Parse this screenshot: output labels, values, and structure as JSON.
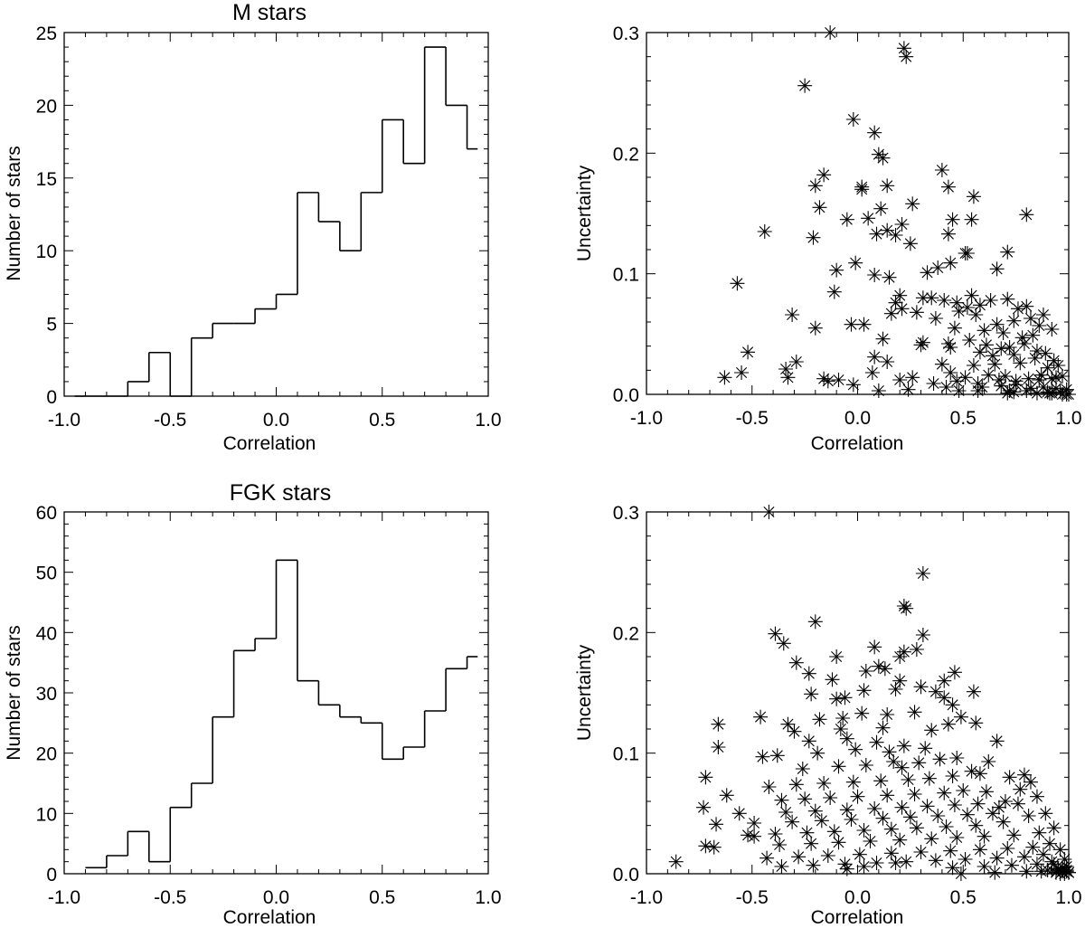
{
  "chart_data": [
    {
      "type": "bar",
      "subtype": "histogram-step",
      "title": "M stars",
      "xlabel": "Correlation",
      "ylabel": "Number of stars",
      "xlim": [
        -1.0,
        1.0
      ],
      "ylim": [
        0,
        25
      ],
      "xticks": [
        -1.0,
        -0.5,
        0.0,
        0.5,
        1.0
      ],
      "xtick_labels": [
        "-1.0",
        "-0.5",
        "0.0",
        "0.5",
        "1.0"
      ],
      "yticks": [
        0,
        5,
        10,
        15,
        20,
        25
      ],
      "ytick_labels": [
        "0",
        "5",
        "10",
        "15",
        "20",
        "25"
      ],
      "bin_edges": [
        -0.95,
        -0.9,
        -0.8,
        -0.7,
        -0.6,
        -0.5,
        -0.4,
        -0.3,
        -0.2,
        -0.1,
        0.0,
        0.1,
        0.2,
        0.3,
        0.4,
        0.5,
        0.6,
        0.7,
        0.8,
        0.9,
        0.95
      ],
      "values": [
        0,
        0,
        0,
        1,
        3,
        0,
        4,
        5,
        5,
        6,
        7,
        14,
        12,
        10,
        14,
        19,
        16,
        24,
        20,
        17
      ],
      "grid": false
    },
    {
      "type": "scatter",
      "title": "",
      "xlabel": "Correlation",
      "ylabel": "Uncertainty",
      "xlim": [
        -1.0,
        1.0
      ],
      "ylim": [
        0.0,
        0.3
      ],
      "xticks": [
        -1.0,
        -0.5,
        0.0,
        0.5,
        1.0
      ],
      "xtick_labels": [
        "-1.0",
        "-0.5",
        "0.0",
        "0.5",
        "1.0"
      ],
      "yticks": [
        0.0,
        0.1,
        0.2,
        0.3
      ],
      "ytick_labels": [
        "0.0",
        "0.1",
        "0.2",
        "0.3"
      ],
      "marker": "asterisk",
      "grid": false,
      "x": [
        -0.13,
        0.22,
        0.23,
        -0.25,
        -0.02,
        0.08,
        0.1,
        0.12,
        -0.16,
        -0.2,
        0.02,
        0.14,
        0.4,
        0.43,
        0.02,
        0.11,
        0.05,
        0.14,
        0.55,
        -0.18,
        0.26,
        -0.44,
        -0.05,
        0.21,
        0.45,
        0.54,
        0.8,
        -0.21,
        0.09,
        0.18,
        0.25,
        0.43,
        0.51,
        0.71,
        0.52,
        0.66,
        -0.57,
        0.15,
        0.33,
        0.44,
        0.2,
        0.38,
        0.08,
        -0.01,
        -0.1,
        -0.11,
        0.35,
        0.54,
        -0.31,
        0.16,
        0.21,
        0.31,
        0.41,
        0.47,
        0.52,
        0.58,
        0.63,
        0.71,
        0.76,
        0.8,
        0.88,
        0.18,
        0.28,
        0.37,
        0.48,
        0.56,
        0.66,
        0.74,
        0.82,
        0.86,
        0.92,
        -0.2,
        -0.03,
        0.03,
        0.46,
        0.6,
        0.69,
        0.78,
        0.83,
        0.12,
        0.31,
        0.43,
        0.53,
        0.61,
        0.68,
        0.72,
        0.79,
        0.85,
        0.89,
        -0.52,
        0.08,
        0.3,
        0.44,
        0.58,
        0.64,
        0.74,
        0.84,
        0.93,
        -0.29,
        -0.34,
        0.14,
        0.4,
        0.55,
        0.65,
        0.77,
        0.9,
        0.95,
        -0.55,
        -0.16,
        0.07,
        0.26,
        0.44,
        0.51,
        0.62,
        0.7,
        0.81,
        0.87,
        0.94,
        -0.33,
        -0.14,
        -0.09,
        0.2,
        0.36,
        0.47,
        0.57,
        0.67,
        0.75,
        0.86,
        0.92,
        0.97,
        -0.63,
        -0.02,
        0.1,
        0.24,
        0.42,
        0.59,
        0.68,
        0.75,
        0.82,
        0.88,
        0.94,
        0.99,
        0.48,
        0.57,
        0.72,
        0.8,
        0.9,
        0.96,
        0.74,
        0.85,
        0.92,
        0.97,
        0.99,
        1.0,
        0.71,
        0.91
      ],
      "y": [
        0.3,
        0.287,
        0.28,
        0.256,
        0.228,
        0.217,
        0.199,
        0.196,
        0.182,
        0.173,
        0.172,
        0.173,
        0.186,
        0.172,
        0.17,
        0.154,
        0.146,
        0.136,
        0.164,
        0.155,
        0.158,
        0.135,
        0.145,
        0.141,
        0.145,
        0.145,
        0.149,
        0.13,
        0.133,
        0.132,
        0.125,
        0.133,
        0.117,
        0.118,
        0.117,
        0.104,
        0.092,
        0.097,
        0.101,
        0.109,
        0.082,
        0.105,
        0.099,
        0.109,
        0.103,
        0.085,
        0.08,
        0.082,
        0.066,
        0.067,
        0.071,
        0.08,
        0.078,
        0.076,
        0.072,
        0.074,
        0.078,
        0.079,
        0.071,
        0.073,
        0.066,
        0.076,
        0.068,
        0.063,
        0.069,
        0.066,
        0.058,
        0.061,
        0.063,
        0.057,
        0.054,
        0.055,
        0.058,
        0.058,
        0.055,
        0.053,
        0.051,
        0.047,
        0.049,
        0.046,
        0.043,
        0.042,
        0.045,
        0.041,
        0.038,
        0.039,
        0.042,
        0.036,
        0.034,
        0.035,
        0.031,
        0.041,
        0.039,
        0.035,
        0.032,
        0.033,
        0.03,
        0.028,
        0.027,
        0.021,
        0.027,
        0.025,
        0.024,
        0.025,
        0.026,
        0.022,
        0.024,
        0.018,
        0.013,
        0.018,
        0.014,
        0.018,
        0.014,
        0.016,
        0.015,
        0.013,
        0.016,
        0.014,
        0.014,
        0.011,
        0.012,
        0.012,
        0.009,
        0.011,
        0.009,
        0.012,
        0.011,
        0.012,
        0.013,
        0.015,
        0.014,
        0.008,
        0.003,
        0.004,
        0.006,
        0.006,
        0.007,
        0.008,
        0.005,
        0.006,
        0.005,
        0.004,
        0.003,
        0.003,
        0.003,
        0.003,
        0.002,
        0.002,
        0.002,
        0.001,
        0.001,
        0.0,
        0.0,
        0.0,
        0.001,
        0.001
      ]
    },
    {
      "type": "bar",
      "subtype": "histogram-step",
      "title": "FGK stars",
      "xlabel": "Correlation",
      "ylabel": "Number of stars",
      "xlim": [
        -1.0,
        1.0
      ],
      "ylim": [
        0,
        60
      ],
      "xticks": [
        -1.0,
        -0.5,
        0.0,
        0.5,
        1.0
      ],
      "xtick_labels": [
        "-1.0",
        "-0.5",
        "0.0",
        "0.5",
        "1.0"
      ],
      "yticks": [
        0,
        10,
        20,
        30,
        40,
        50,
        60
      ],
      "ytick_labels": [
        "0",
        "10",
        "20",
        "30",
        "40",
        "50",
        "60"
      ],
      "bin_edges": [
        -0.9,
        -0.8,
        -0.7,
        -0.6,
        -0.5,
        -0.4,
        -0.3,
        -0.2,
        -0.1,
        0.0,
        0.1,
        0.2,
        0.3,
        0.4,
        0.5,
        0.6,
        0.7,
        0.8,
        0.9,
        0.95
      ],
      "values": [
        1,
        3,
        7,
        2,
        11,
        15,
        26,
        37,
        39,
        52,
        32,
        28,
        26,
        25,
        19,
        21,
        27,
        34,
        36
      ],
      "grid": false
    },
    {
      "type": "scatter",
      "title": "",
      "xlabel": "Correlation",
      "ylabel": "Uncertainty",
      "xlim": [
        -1.0,
        1.0
      ],
      "ylim": [
        0.0,
        0.3
      ],
      "xticks": [
        -1.0,
        -0.5,
        0.0,
        0.5,
        1.0
      ],
      "xtick_labels": [
        "-1.0",
        "-0.5",
        "0.0",
        "0.5",
        "1.0"
      ],
      "yticks": [
        0.0,
        0.1,
        0.2,
        0.3
      ],
      "ytick_labels": [
        "0.0",
        "0.1",
        "0.2",
        "0.3"
      ],
      "marker": "asterisk",
      "grid": false,
      "x": [
        -0.42,
        0.31,
        0.22,
        0.23,
        -0.39,
        0.31,
        0.28,
        -0.2,
        -0.35,
        0.08,
        0.22,
        0.2,
        0.41,
        0.46,
        0.1,
        -0.1,
        0.13,
        0.04,
        -0.29,
        -0.12,
        -0.23,
        0.2,
        0.37,
        0.3,
        0.18,
        0.03,
        -0.06,
        -0.22,
        -0.1,
        0.41,
        0.45,
        0.55,
        -0.66,
        0.56,
        0.49,
        0.27,
        0.14,
        0.02,
        -0.07,
        -0.18,
        -0.33,
        -0.46,
        0.35,
        0.43,
        0.12,
        -0.08,
        -0.3,
        -0.66,
        -0.23,
        -0.05,
        0.09,
        0.22,
        0.66,
        0.32,
        0.15,
        -0.01,
        -0.19,
        -0.38,
        -0.45,
        0.47,
        0.62,
        0.39,
        0.29,
        0.17,
        0.04,
        -0.09,
        -0.26,
        0.21,
        0.54,
        0.72,
        0.79,
        0.58,
        0.45,
        0.34,
        0.24,
        0.11,
        -0.02,
        -0.16,
        -0.29,
        -0.42,
        -0.72,
        0.82,
        0.77,
        0.61,
        0.5,
        0.41,
        0.27,
        0.14,
        0.0,
        -0.13,
        -0.25,
        -0.36,
        -0.62,
        0.85,
        0.7,
        0.57,
        0.46,
        0.33,
        0.21,
        0.08,
        -0.05,
        -0.2,
        -0.34,
        -0.56,
        0.67,
        0.76,
        0.64,
        0.52,
        0.38,
        0.25,
        0.12,
        -0.03,
        -0.17,
        -0.31,
        -0.49,
        -0.67,
        -0.73,
        0.89,
        0.81,
        0.69,
        0.56,
        0.42,
        0.28,
        0.16,
        0.03,
        -0.11,
        -0.24,
        -0.39,
        -0.52,
        -0.49,
        0.93,
        0.86,
        0.74,
        0.6,
        0.47,
        0.35,
        0.2,
        0.06,
        -0.09,
        -0.22,
        -0.37,
        -0.72,
        0.91,
        0.83,
        0.71,
        0.58,
        0.44,
        0.3,
        0.16,
        0.01,
        -0.14,
        -0.28,
        -0.43,
        0.96,
        0.88,
        0.79,
        0.66,
        0.51,
        0.37,
        0.23,
        0.09,
        -0.06,
        -0.21,
        -0.36,
        -0.68,
        0.98,
        0.92,
        0.85,
        0.73,
        0.6,
        0.45,
        0.18,
        0.03,
        -0.05,
        0.99,
        0.95,
        0.9,
        0.8,
        0.65,
        0.49,
        -0.86,
        0.97,
        0.99,
        0.94,
        0.87,
        1.0,
        0.96,
        0.92,
        0.98,
        0.97,
        1.0,
        0.95,
        0.99,
        0.93
      ],
      "y": [
        0.3,
        0.249,
        0.222,
        0.22,
        0.199,
        0.198,
        0.186,
        0.209,
        0.191,
        0.188,
        0.184,
        0.18,
        0.16,
        0.167,
        0.172,
        0.18,
        0.17,
        0.168,
        0.175,
        0.161,
        0.166,
        0.16,
        0.151,
        0.155,
        0.153,
        0.152,
        0.146,
        0.149,
        0.145,
        0.146,
        0.14,
        0.151,
        0.124,
        0.125,
        0.13,
        0.134,
        0.132,
        0.133,
        0.129,
        0.128,
        0.124,
        0.13,
        0.119,
        0.124,
        0.121,
        0.12,
        0.118,
        0.105,
        0.11,
        0.112,
        0.109,
        0.106,
        0.11,
        0.104,
        0.101,
        0.103,
        0.1,
        0.098,
        0.097,
        0.096,
        0.093,
        0.095,
        0.092,
        0.093,
        0.09,
        0.089,
        0.087,
        0.088,
        0.085,
        0.08,
        0.082,
        0.083,
        0.081,
        0.079,
        0.078,
        0.077,
        0.076,
        0.075,
        0.074,
        0.072,
        0.08,
        0.076,
        0.07,
        0.068,
        0.069,
        0.067,
        0.066,
        0.065,
        0.064,
        0.063,
        0.062,
        0.061,
        0.065,
        0.064,
        0.06,
        0.058,
        0.057,
        0.056,
        0.055,
        0.054,
        0.053,
        0.052,
        0.051,
        0.05,
        0.055,
        0.058,
        0.05,
        0.049,
        0.048,
        0.047,
        0.046,
        0.045,
        0.044,
        0.043,
        0.042,
        0.041,
        0.055,
        0.05,
        0.048,
        0.043,
        0.04,
        0.039,
        0.038,
        0.037,
        0.036,
        0.035,
        0.034,
        0.033,
        0.032,
        0.031,
        0.038,
        0.034,
        0.032,
        0.031,
        0.03,
        0.029,
        0.028,
        0.027,
        0.026,
        0.025,
        0.024,
        0.023,
        0.025,
        0.022,
        0.021,
        0.02,
        0.019,
        0.018,
        0.017,
        0.016,
        0.015,
        0.014,
        0.013,
        0.02,
        0.016,
        0.014,
        0.013,
        0.012,
        0.011,
        0.01,
        0.009,
        0.008,
        0.007,
        0.006,
        0.022,
        0.012,
        0.01,
        0.008,
        0.007,
        0.006,
        0.005,
        0.009,
        0.006,
        0.004,
        0.006,
        0.004,
        0.003,
        0.002,
        0.001,
        0.0,
        0.01,
        0.005,
        0.002,
        0.001,
        0.002,
        0.001,
        0.0,
        0.003,
        0.0,
        0.002,
        0.001,
        0.004,
        0.003,
        0.008
      ]
    }
  ]
}
